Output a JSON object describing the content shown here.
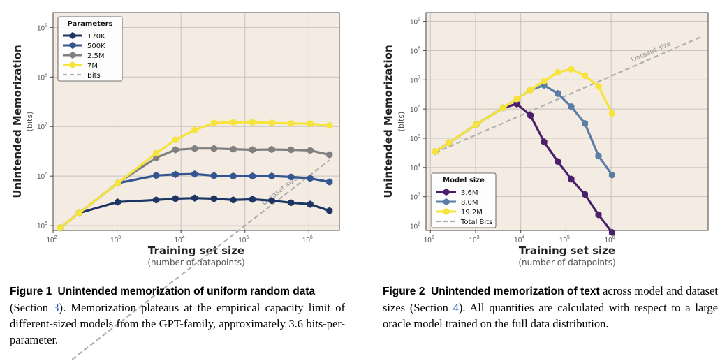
{
  "figures": [
    {
      "caption": {
        "label": "Figure 1",
        "title": "Unintended memorization of uniform random data",
        "pre": "(Section ",
        "ref": "3",
        "post": ").  Memorization plateaus at the empirical capacity limit of different-sized models from the GPT-family, approximately 3.6 bits-per-parameter."
      }
    },
    {
      "caption": {
        "label": "Figure 2",
        "title": "Unintended memorization of text",
        "pre": " across model and dataset sizes (Section ",
        "ref": "4",
        "post": ").  All quantities are calculated with respect to a large oracle model trained on the full data distribution."
      }
    }
  ],
  "chart_data": [
    {
      "type": "line",
      "xscale": "log",
      "yscale": "log",
      "xlim": [
        100,
        3000000
      ],
      "ylim": [
        80000,
        2000000000
      ],
      "xticks": [
        {
          "label": "10",
          "exp": "2",
          "v": 100
        },
        {
          "label": "10",
          "exp": "3",
          "v": 1000
        },
        {
          "label": "10",
          "exp": "4",
          "v": 10000
        },
        {
          "label": "10",
          "exp": "5",
          "v": 100000
        },
        {
          "label": "10",
          "exp": "6",
          "v": 1000000
        }
      ],
      "yticks": [
        {
          "label": "10",
          "exp": "5",
          "v": 100000
        },
        {
          "label": "10",
          "exp": "6",
          "v": 1000000
        },
        {
          "label": "10",
          "exp": "7",
          "v": 10000000
        },
        {
          "label": "10",
          "exp": "8",
          "v": 100000000
        },
        {
          "label": "10",
          "exp": "9",
          "v": 1000000000
        }
      ],
      "xlabel": "Training set size",
      "xsublabel": "(number of datapoints)",
      "ylabel": "Unintended Memorization",
      "ysublabel": "(bits)",
      "grid": true,
      "legend": {
        "title": "Parameters",
        "position": "top-left"
      },
      "reference": {
        "name": "Bits",
        "label": "Dataset size",
        "color": "#b0b0b0",
        "x": [
          128,
          2097152
        ],
        "y": [
          128,
          2097152
        ]
      },
      "series": [
        {
          "name": "170K",
          "color": "#1c3563",
          "marker": "hexagon",
          "x": [
            128,
            256,
            1024,
            4096,
            8192,
            16384,
            32768,
            65536,
            131072,
            262144,
            524288,
            1048576,
            2097152
          ],
          "y": [
            90000,
            180000,
            300000,
            330000,
            350000,
            360000,
            350000,
            330000,
            340000,
            320000,
            290000,
            270000,
            200000
          ]
        },
        {
          "name": "500K",
          "color": "#345590",
          "marker": "hexagon",
          "x": [
            128,
            256,
            1024,
            4096,
            8192,
            16384,
            32768,
            65536,
            131072,
            262144,
            524288,
            1048576,
            2097152
          ],
          "y": [
            90000,
            180000,
            720000,
            1030000,
            1080000,
            1100000,
            1020000,
            1000000,
            1000000,
            1000000,
            960000,
            900000,
            760000
          ]
        },
        {
          "name": "2.5M",
          "color": "#808080",
          "marker": "hexagon",
          "x": [
            128,
            256,
            1024,
            4096,
            8192,
            16384,
            32768,
            65536,
            131072,
            262144,
            524288,
            1048576,
            2097152
          ],
          "y": [
            90000,
            180000,
            720000,
            2350000,
            3400000,
            3600000,
            3600000,
            3500000,
            3400000,
            3450000,
            3400000,
            3300000,
            2700000
          ]
        },
        {
          "name": "7M",
          "color": "#f6e33b",
          "marker": "hexagon",
          "x": [
            128,
            256,
            1024,
            4096,
            8192,
            16384,
            32768,
            65536,
            131072,
            262144,
            524288,
            1048576,
            2097152
          ],
          "y": [
            90000,
            180000,
            720000,
            2900000,
            5400000,
            8500000,
            11800000,
            12200000,
            12200000,
            11800000,
            11500000,
            11400000,
            10500000
          ]
        }
      ]
    },
    {
      "type": "line",
      "xscale": "log",
      "yscale": "log",
      "xlim": [
        80,
        140000000
      ],
      "ylim": [
        70,
        2000000000
      ],
      "xticks": [
        {
          "label": "10",
          "exp": "2",
          "v": 100
        },
        {
          "label": "10",
          "exp": "3",
          "v": 1000
        },
        {
          "label": "10",
          "exp": "4",
          "v": 10000
        },
        {
          "label": "10",
          "exp": "5",
          "v": 100000
        },
        {
          "label": "10",
          "exp": "6",
          "v": 1000000
        }
      ],
      "yticks": [
        {
          "label": "10",
          "exp": "2",
          "v": 100
        },
        {
          "label": "10",
          "exp": "3",
          "v": 1000
        },
        {
          "label": "10",
          "exp": "4",
          "v": 10000
        },
        {
          "label": "10",
          "exp": "5",
          "v": 100000
        },
        {
          "label": "10",
          "exp": "6",
          "v": 1000000
        },
        {
          "label": "10",
          "exp": "7",
          "v": 10000000
        },
        {
          "label": "10",
          "exp": "8",
          "v": 100000000
        },
        {
          "label": "10",
          "exp": "9",
          "v": 1000000000
        }
      ],
      "xlabel": "Training set size",
      "xsublabel": "(number of datapoints)",
      "ylabel": "Unintended Memorization",
      "ysublabel": "(bits)",
      "grid": true,
      "legend": {
        "title": "Model size",
        "position": "bottom-left"
      },
      "reference": {
        "name": "Total Bits",
        "label": "Dataset size",
        "color": "#b0b0b0",
        "x": [
          128,
          100000000
        ],
        "y": [
          32000,
          300000000
        ]
      },
      "series": [
        {
          "name": "3.6M",
          "color": "#4a1f6b",
          "marker": "hexagon",
          "x": [
            128,
            256,
            1024,
            4096,
            8192,
            16384,
            32768,
            65536,
            131072,
            262144,
            524288,
            1048576
          ],
          "y": [
            35000,
            70000,
            290000,
            1100000,
            1500000,
            600000,
            75000,
            16000,
            4000,
            1200,
            240,
            60
          ]
        },
        {
          "name": "8.0M",
          "color": "#5a7ea6",
          "marker": "hexagon",
          "x": [
            128,
            256,
            1024,
            4096,
            8192,
            16384,
            32768,
            65536,
            131072,
            262144,
            524288,
            1048576
          ],
          "y": [
            35000,
            70000,
            290000,
            1100000,
            2200000,
            4500000,
            6500000,
            3400000,
            1200000,
            320000,
            25000,
            5500
          ]
        },
        {
          "name": "19.2M",
          "color": "#f6e33b",
          "marker": "hexagon",
          "x": [
            128,
            256,
            1024,
            4096,
            8192,
            16384,
            32768,
            65536,
            131072,
            262144,
            524288,
            1048576
          ],
          "y": [
            35000,
            70000,
            290000,
            1100000,
            2200000,
            4500000,
            9000000,
            18000000,
            23000000,
            14000000,
            6000000,
            700000
          ]
        }
      ]
    }
  ]
}
